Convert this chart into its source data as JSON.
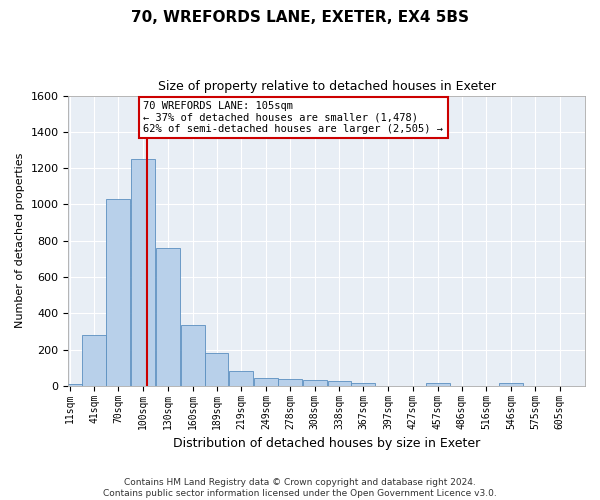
{
  "title1": "70, WREFORDS LANE, EXETER, EX4 5BS",
  "title2": "Size of property relative to detached houses in Exeter",
  "xlabel": "Distribution of detached houses by size in Exeter",
  "ylabel": "Number of detached properties",
  "footer1": "Contains HM Land Registry data © Crown copyright and database right 2024.",
  "footer2": "Contains public sector information licensed under the Open Government Licence v3.0.",
  "annotation_title": "70 WREFORDS LANE: 105sqm",
  "annotation_line1": "← 37% of detached houses are smaller (1,478)",
  "annotation_line2": "62% of semi-detached houses are larger (2,505) →",
  "bar_color": "#b8d0ea",
  "bar_edge_color": "#5a8fc0",
  "redline_color": "#cc0000",
  "redline_x": 105,
  "categories": [
    "11sqm",
    "41sqm",
    "70sqm",
    "100sqm",
    "130sqm",
    "160sqm",
    "189sqm",
    "219sqm",
    "249sqm",
    "278sqm",
    "308sqm",
    "338sqm",
    "367sqm",
    "397sqm",
    "427sqm",
    "457sqm",
    "486sqm",
    "516sqm",
    "546sqm",
    "575sqm",
    "605sqm"
  ],
  "bin_edges": [
    11,
    41,
    70,
    100,
    130,
    160,
    189,
    219,
    249,
    278,
    308,
    338,
    367,
    397,
    427,
    457,
    486,
    516,
    546,
    575,
    605
  ],
  "bin_width": 29,
  "values": [
    10,
    280,
    1030,
    1250,
    760,
    335,
    180,
    80,
    45,
    40,
    30,
    25,
    15,
    0,
    0,
    15,
    0,
    0,
    15,
    0,
    0
  ],
  "ylim": [
    0,
    1600
  ],
  "yticks": [
    0,
    200,
    400,
    600,
    800,
    1000,
    1200,
    1400,
    1600
  ],
  "fig_bg_color": "#ffffff",
  "axes_bg_color": "#e8eef5",
  "grid_color": "#ffffff",
  "annotation_box_facecolor": "#ffffff",
  "annotation_box_edgecolor": "#cc0000",
  "title1_fontsize": 11,
  "title2_fontsize": 9,
  "ylabel_fontsize": 8,
  "xlabel_fontsize": 9,
  "ytick_fontsize": 8,
  "xtick_fontsize": 7,
  "footer_fontsize": 6.5
}
